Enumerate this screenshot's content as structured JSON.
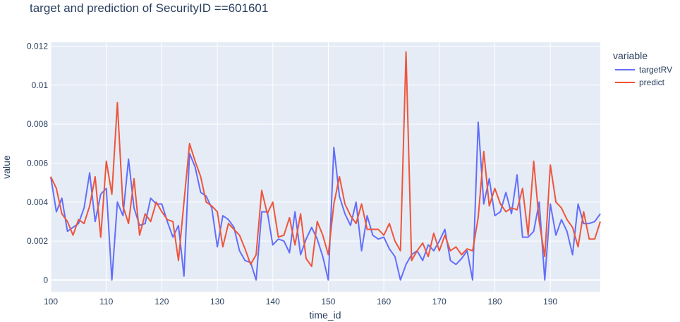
{
  "chart_data": {
    "type": "line",
    "title": "target and prediction of SecurityID ==601601",
    "xlabel": "time_id",
    "ylabel": "value",
    "xlim": [
      100,
      199
    ],
    "ylim": [
      -0.0006,
      0.0122
    ],
    "xticks": [
      100,
      110,
      120,
      130,
      140,
      150,
      160,
      170,
      180,
      190
    ],
    "yticks": [
      0,
      0.002,
      0.004,
      0.006,
      0.008,
      0.01,
      0.012
    ],
    "ytick_labels": [
      "0",
      "0.002",
      "0.004",
      "0.006",
      "0.008",
      "0.01",
      "0.012"
    ],
    "grid": true,
    "legend_title": "variable",
    "legend_position": "top-right",
    "x_start": 100,
    "series": [
      {
        "name": "targetRV",
        "color": "#636efa",
        "values": [
          0.0053,
          0.0035,
          0.0042,
          0.0025,
          0.0027,
          0.0029,
          0.0037,
          0.0055,
          0.003,
          0.0044,
          0.0047,
          0.0,
          0.004,
          0.0033,
          0.0062,
          0.0037,
          0.0028,
          0.0029,
          0.0042,
          0.0039,
          0.0039,
          0.003,
          0.0022,
          0.0028,
          0.0002,
          0.0065,
          0.0058,
          0.0045,
          0.0043,
          0.0037,
          0.0017,
          0.0033,
          0.0031,
          0.0027,
          0.0015,
          0.001,
          0.0009,
          0.0,
          0.0035,
          0.0035,
          0.0018,
          0.0021,
          0.002,
          0.0014,
          0.0035,
          0.0013,
          0.0021,
          0.0027,
          0.0021,
          0.0012,
          0.0,
          0.0068,
          0.0043,
          0.0034,
          0.0028,
          0.004,
          0.0015,
          0.0033,
          0.0023,
          0.0021,
          0.0022,
          0.0016,
          0.0012,
          0.0,
          0.0008,
          0.0013,
          0.0015,
          0.001,
          0.0018,
          0.0015,
          0.002,
          0.0026,
          0.001,
          0.0008,
          0.0011,
          0.0015,
          0.0,
          0.0081,
          0.0039,
          0.0052,
          0.0033,
          0.0035,
          0.0045,
          0.0034,
          0.0054,
          0.0022,
          0.0022,
          0.0025,
          0.004,
          0.0,
          0.0039,
          0.0023,
          0.0031,
          0.0025,
          0.0013,
          0.0039,
          0.0029,
          0.0029,
          0.003,
          0.0034
        ]
      },
      {
        "name": "predict",
        "color": "#ef553b",
        "values": [
          0.0053,
          0.0047,
          0.0034,
          0.003,
          0.0023,
          0.0031,
          0.0029,
          0.0038,
          0.0053,
          0.0022,
          0.0061,
          0.0044,
          0.0091,
          0.0038,
          0.0029,
          0.0052,
          0.0023,
          0.0034,
          0.003,
          0.004,
          0.0035,
          0.0031,
          0.003,
          0.001,
          0.004,
          0.007,
          0.0061,
          0.0053,
          0.004,
          0.0038,
          0.0035,
          0.0017,
          0.0029,
          0.0026,
          0.0023,
          0.0016,
          0.0008,
          0.0013,
          0.0046,
          0.0034,
          0.004,
          0.0022,
          0.0023,
          0.0032,
          0.0018,
          0.0034,
          0.0011,
          0.0007,
          0.003,
          0.0023,
          0.0013,
          0.0039,
          0.0053,
          0.0039,
          0.0033,
          0.0029,
          0.0039,
          0.0026,
          0.0026,
          0.0026,
          0.0023,
          0.0029,
          0.002,
          0.0015,
          0.0117,
          0.001,
          0.0015,
          0.0019,
          0.0012,
          0.0024,
          0.0015,
          0.0023,
          0.0015,
          0.0017,
          0.0013,
          0.0016,
          0.0015,
          0.0032,
          0.0066,
          0.0038,
          0.0047,
          0.0039,
          0.0035,
          0.0037,
          0.0036,
          0.0047,
          0.0023,
          0.0061,
          0.003,
          0.0012,
          0.0059,
          0.004,
          0.0037,
          0.0031,
          0.0027,
          0.0017,
          0.0035,
          0.0021,
          0.0021,
          0.003
        ]
      }
    ]
  }
}
